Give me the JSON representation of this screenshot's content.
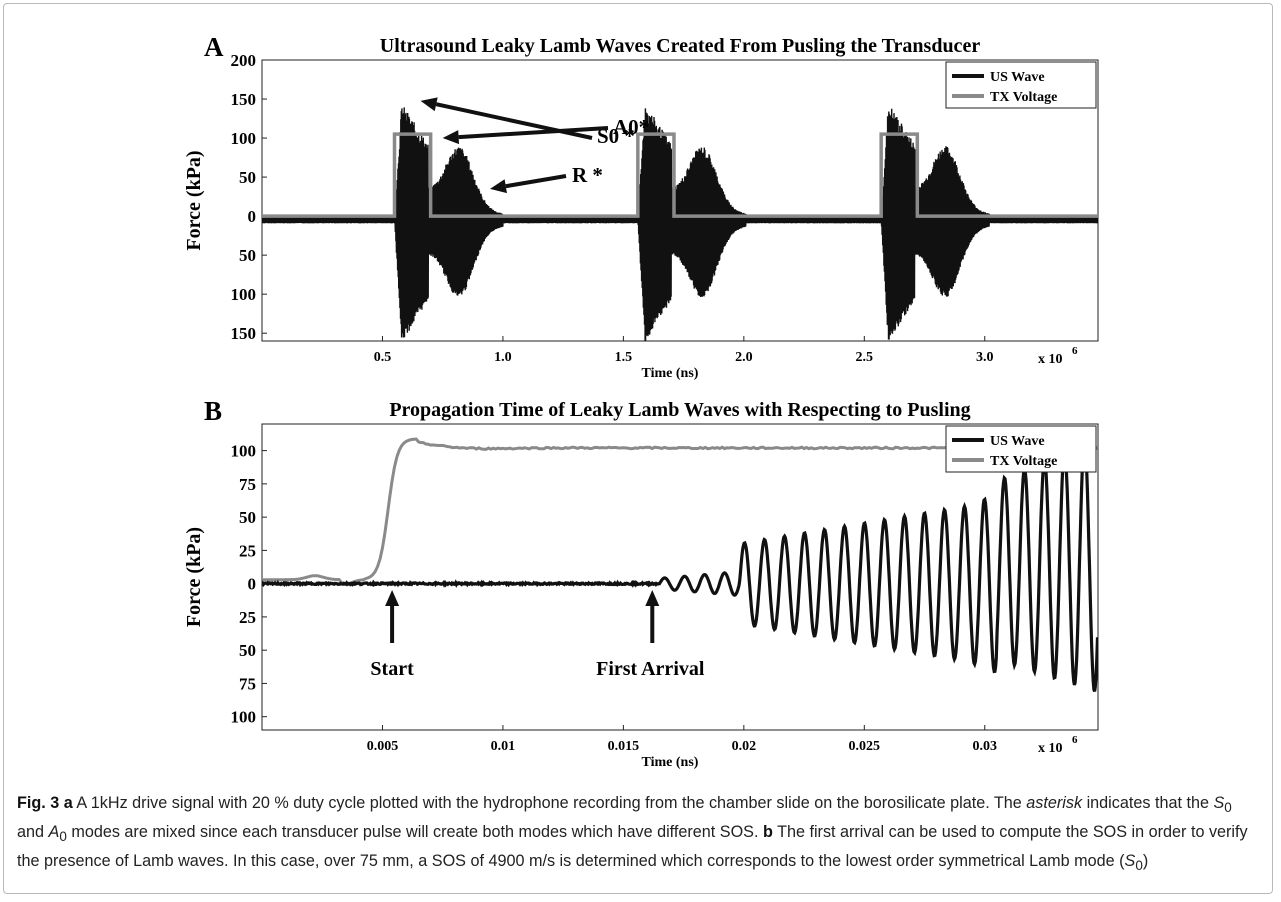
{
  "chart_data": [
    {
      "panel_label": "A",
      "type": "line",
      "title": "Ultrasound Leaky Lamb Waves Created From Pusling the Transducer",
      "xlabel": "Time (ns)",
      "ylabel": "Force (kPa)",
      "x_multiplier": "x 10",
      "x_multiplier_exp": "6",
      "xlim": [
        0.0,
        3.47
      ],
      "ylim": [
        -160,
        200
      ],
      "xticks": [
        {
          "value": 0.5,
          "label": "0.5"
        },
        {
          "value": 1.0,
          "label": "1.0"
        },
        {
          "value": 1.5,
          "label": "1.5"
        },
        {
          "value": 2.0,
          "label": "2.0"
        },
        {
          "value": 2.5,
          "label": "2.5"
        },
        {
          "value": 3.0,
          "label": "3.0"
        }
      ],
      "yticks": [
        {
          "value": 200,
          "label": "200"
        },
        {
          "value": 150,
          "label": "150"
        },
        {
          "value": 100,
          "label": "100"
        },
        {
          "value": 50,
          "label": "50"
        },
        {
          "value": 0,
          "label": "0"
        },
        {
          "value": -50,
          "label": "50"
        },
        {
          "value": -100,
          "label": "100"
        },
        {
          "value": -150,
          "label": "150"
        }
      ],
      "legend": {
        "position": "top-right",
        "entries": [
          "US Wave",
          "TX Voltage"
        ]
      },
      "series": [
        {
          "name": "US Wave",
          "color": "#111111",
          "pulse_starts": [
            0.55,
            1.56,
            2.57
          ],
          "peak_pos": 140,
          "peak_neg": -155,
          "baseline": -5
        },
        {
          "name": "TX Voltage",
          "color": "#8a8a8a",
          "pulse_starts": [
            0.55,
            1.56,
            2.57
          ],
          "pulse_width": 0.15,
          "high": 105,
          "low": 0
        }
      ],
      "annotations": [
        {
          "label": "S0 *",
          "x": 0.6,
          "y": 140
        },
        {
          "label": "A0*",
          "x": 0.7,
          "y": 100
        },
        {
          "label": "R *",
          "x": 0.88,
          "y": 40
        }
      ]
    },
    {
      "panel_label": "B",
      "type": "line",
      "title": "Propagation Time of Leaky Lamb Waves with Respecting to Pusling",
      "xlabel": "Time (ns)",
      "ylabel": "Force (kPa)",
      "x_multiplier": "x 10",
      "x_multiplier_exp": "6",
      "xlim": [
        0.0,
        0.0347
      ],
      "ylim": [
        -110,
        120
      ],
      "xticks": [
        {
          "value": 0.005,
          "label": "0.005"
        },
        {
          "value": 0.01,
          "label": "0.01"
        },
        {
          "value": 0.015,
          "label": "0.015"
        },
        {
          "value": 0.02,
          "label": "0.02"
        },
        {
          "value": 0.025,
          "label": "0.025"
        },
        {
          "value": 0.03,
          "label": "0.03"
        }
      ],
      "yticks": [
        {
          "value": 100,
          "label": "100"
        },
        {
          "value": 75,
          "label": "75"
        },
        {
          "value": 50,
          "label": "50"
        },
        {
          "value": 25,
          "label": "25"
        },
        {
          "value": 0,
          "label": "0"
        },
        {
          "value": -25,
          "label": "25"
        },
        {
          "value": -50,
          "label": "50"
        },
        {
          "value": -75,
          "label": "75"
        },
        {
          "value": -100,
          "label": "100"
        }
      ],
      "legend": {
        "position": "top-right",
        "entries": [
          "US Wave",
          "TX Voltage"
        ]
      },
      "series": [
        {
          "name": "US Wave",
          "color": "#111111",
          "first_arrival": 0.0165,
          "period": 0.00083
        },
        {
          "name": "TX Voltage",
          "color": "#8a8a8a",
          "rise_start": 0.0042,
          "rise_end": 0.0065,
          "plateau": 102
        }
      ],
      "annotations": [
        {
          "label": "Start",
          "x": 0.0054,
          "y": -5
        },
        {
          "label": "First Arrival",
          "x": 0.0162,
          "y": -5
        }
      ]
    }
  ],
  "caption": {
    "fig_label": "Fig. 3",
    "a_label": "a",
    "a_text": " A 1kHz drive signal with 20 % duty cycle plotted with the hydrophone recording from the chamber slide on the borosilicate plate. The ",
    "asterisk_word": "asterisk",
    "a_text2": " indicates that the ",
    "s_sym": "S",
    "sub0": "0",
    "and_text": " and ",
    "a_sym": "A",
    "a_text3": " modes are mixed since each transducer pulse will create both modes which have different SOS. ",
    "b_label": "b",
    "b_text": " The first arrival can be used to compute the SOS in order to verify the presence of Lamb waves. In this case, over 75 mm, a SOS of 4900 m/s is determined which corresponds to the lowest order symmetrical Lamb mode (",
    "b_close": ")"
  },
  "colors": {
    "us_wave": "#111111",
    "tx_voltage": "#8a8a8a",
    "frame_border": "#b9b9b9"
  }
}
